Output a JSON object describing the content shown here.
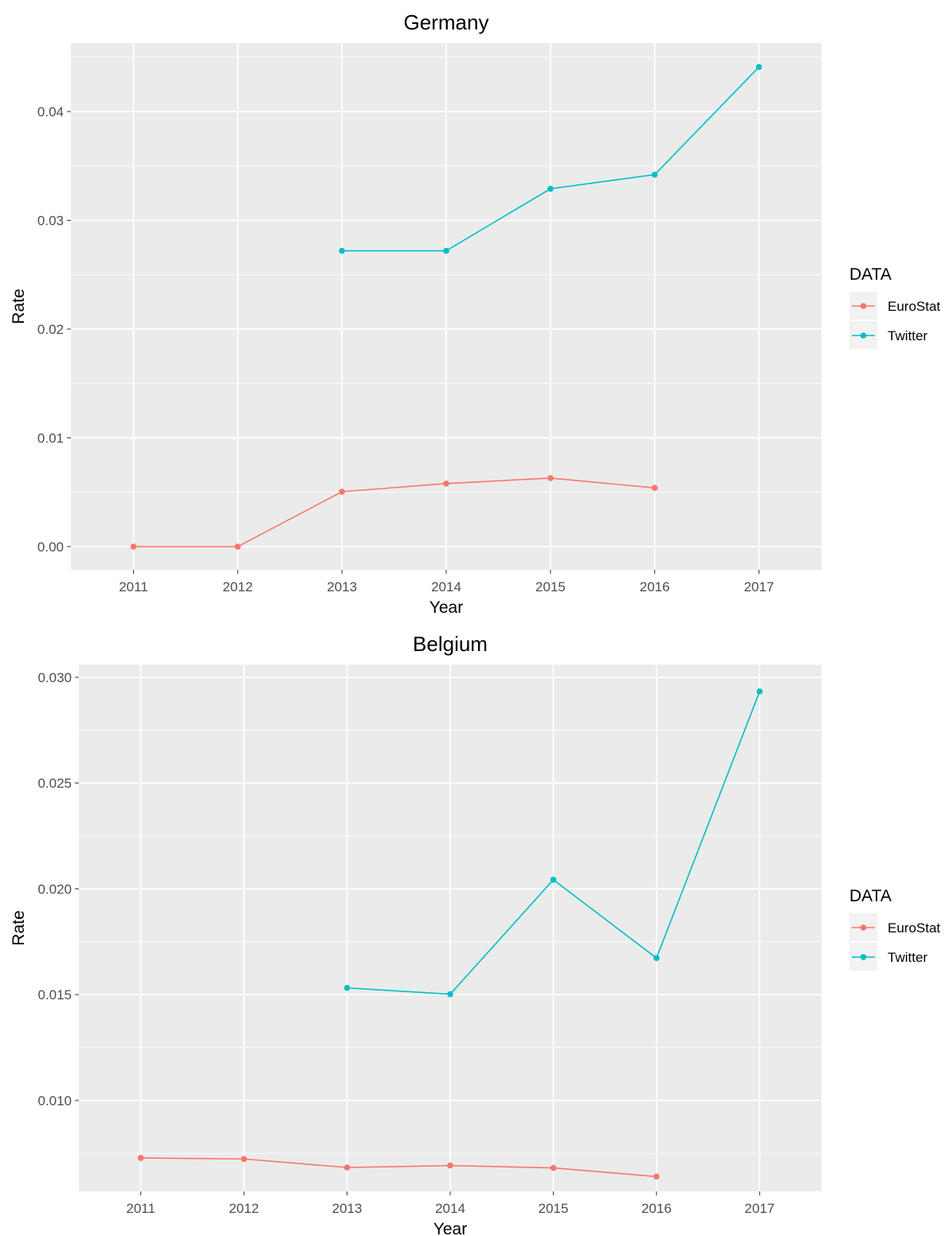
{
  "chart_data": [
    {
      "type": "line",
      "title": "Germany",
      "xlabel": "Year",
      "ylabel": "Rate",
      "x": [
        2011,
        2012,
        2013,
        2014,
        2015,
        2016,
        2017
      ],
      "xlim": [
        2010.4,
        2017.6
      ],
      "ylim": [
        -0.00213,
        0.0463
      ],
      "yticks": [
        0.0,
        0.01,
        0.02,
        0.03,
        0.04
      ],
      "ytick_labels": [
        "0.00",
        "0.01",
        "0.02",
        "0.03",
        "0.04"
      ],
      "grid": true,
      "legend": {
        "title": "DATA",
        "position": "right"
      },
      "series": [
        {
          "name": "EuroStat",
          "color": "#F8766D",
          "values": [
            0.0,
            0.0,
            0.00505,
            0.0058,
            0.0063,
            0.0054,
            null
          ]
        },
        {
          "name": "Twitter",
          "color": "#00BFC4",
          "values": [
            null,
            null,
            0.0272,
            0.0272,
            0.0329,
            0.0342,
            0.0441
          ]
        }
      ]
    },
    {
      "type": "line",
      "title": "Belgium",
      "xlabel": "Year",
      "ylabel": "Rate",
      "x": [
        2011,
        2012,
        2013,
        2014,
        2015,
        2016,
        2017
      ],
      "xlim": [
        2010.4,
        2017.6
      ],
      "ylim": [
        0.0057,
        0.0306
      ],
      "yticks": [
        0.01,
        0.015,
        0.02,
        0.025,
        0.03
      ],
      "ytick_labels": [
        "0.010",
        "0.015",
        "0.020",
        "0.025",
        "0.030"
      ],
      "grid": true,
      "legend": {
        "title": "DATA",
        "position": "right"
      },
      "series": [
        {
          "name": "EuroStat",
          "color": "#F8766D",
          "values": [
            0.00728,
            0.00723,
            0.00683,
            0.00692,
            0.00681,
            0.0064,
            null
          ]
        },
        {
          "name": "Twitter",
          "color": "#00BFC4",
          "values": [
            null,
            null,
            0.01532,
            0.01502,
            0.02043,
            0.01673,
            0.02933
          ]
        }
      ]
    }
  ]
}
